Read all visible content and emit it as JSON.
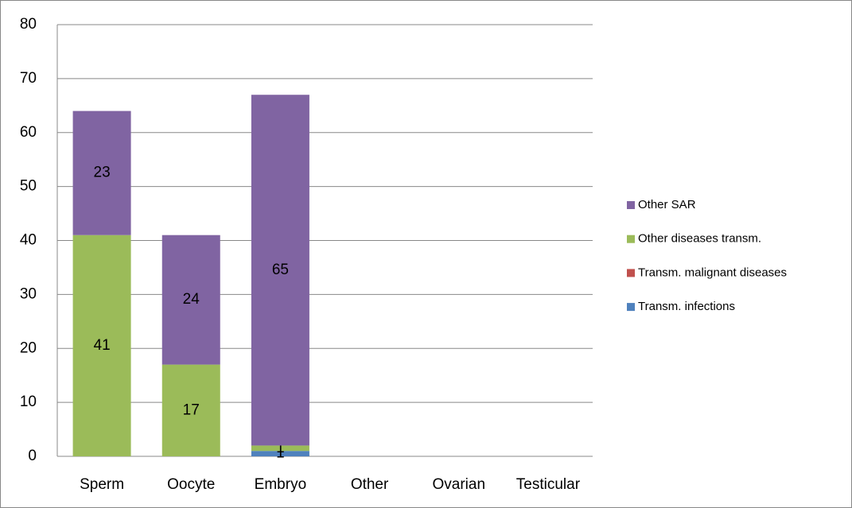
{
  "chart_data": {
    "type": "stacked_bar",
    "categories": [
      "Sperm",
      "Oocyte",
      "Embryo",
      "Other",
      "Ovarian",
      "Testicular"
    ],
    "series": [
      {
        "name": "Transm. infections",
        "color": "#4f81bd",
        "values": [
          0,
          0,
          1,
          0,
          0,
          0
        ]
      },
      {
        "name": "Transm. malignant diseases",
        "color": "#c0504d",
        "values": [
          0,
          0,
          0,
          0,
          0,
          0
        ]
      },
      {
        "name": "Other diseases transm.",
        "color": "#9bbb59",
        "values": [
          41,
          17,
          1,
          0,
          0,
          0
        ]
      },
      {
        "name": "Other SAR",
        "color": "#8064a2",
        "values": [
          23,
          24,
          65,
          0,
          0,
          0
        ]
      }
    ],
    "ylim": [
      0,
      80
    ],
    "yticks": [
      0,
      10,
      20,
      30,
      40,
      50,
      60,
      70,
      80
    ],
    "grid": true,
    "legend": "right"
  }
}
